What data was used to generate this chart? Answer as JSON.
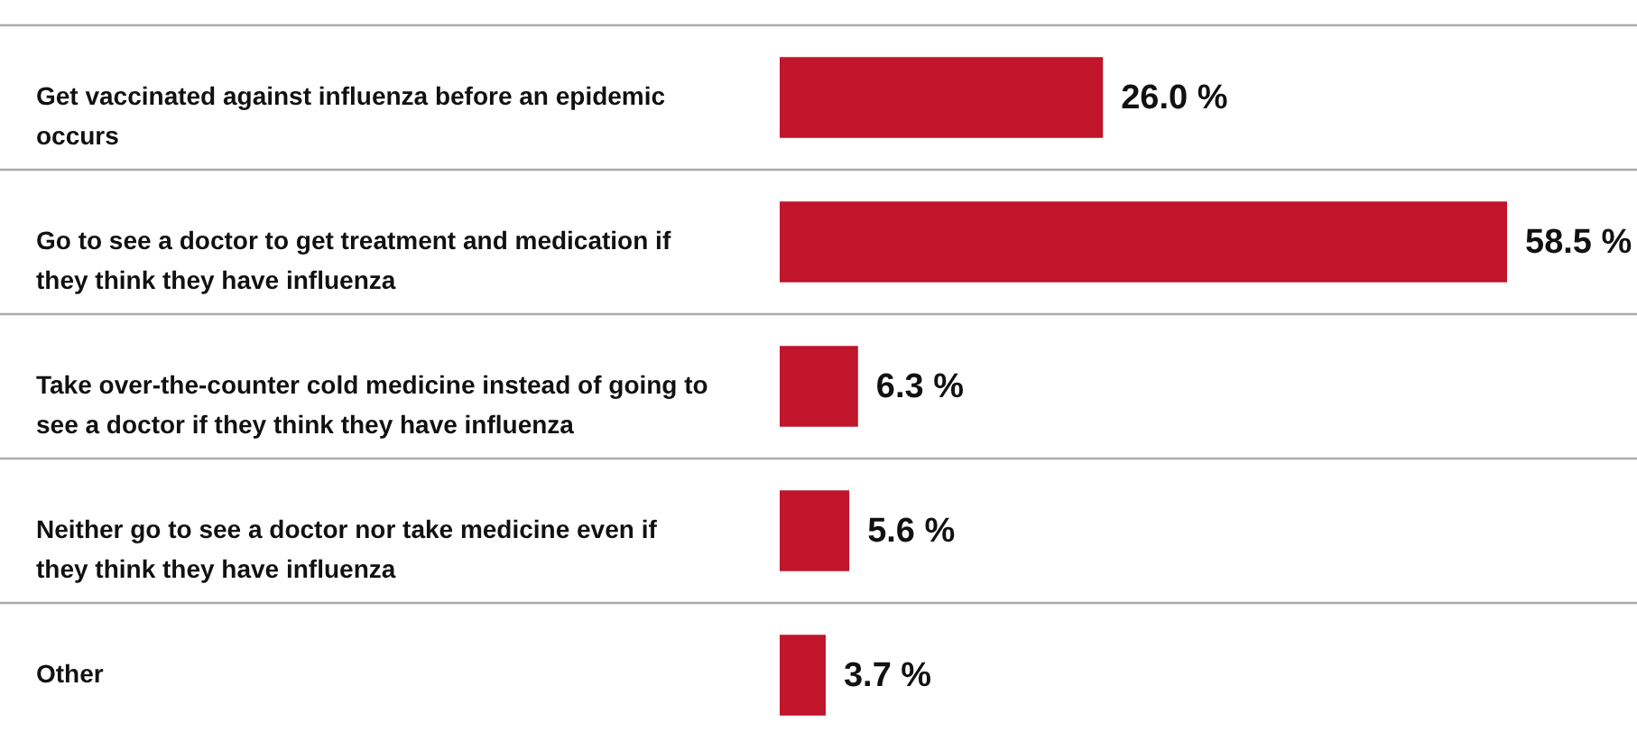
{
  "chart_data": {
    "type": "bar",
    "orientation": "horizontal",
    "categories": [
      "Get vaccinated against influenza before an epidemic occurs",
      "Go to see a doctor to get treatment and medication if they think they have influenza",
      "Take over-the-counter cold medicine instead of going to see a doctor if they think they have influenza",
      "Neither go to see a doctor nor take medicine even if they think they have influenza",
      "Other"
    ],
    "values": [
      26.0,
      58.5,
      6.3,
      5.6,
      3.7
    ],
    "value_labels": [
      "26.0 %",
      "58.5 %",
      "6.3 %",
      "5.6 %",
      "3.7 %"
    ],
    "color": "#c0152a",
    "grid": "y"
  }
}
